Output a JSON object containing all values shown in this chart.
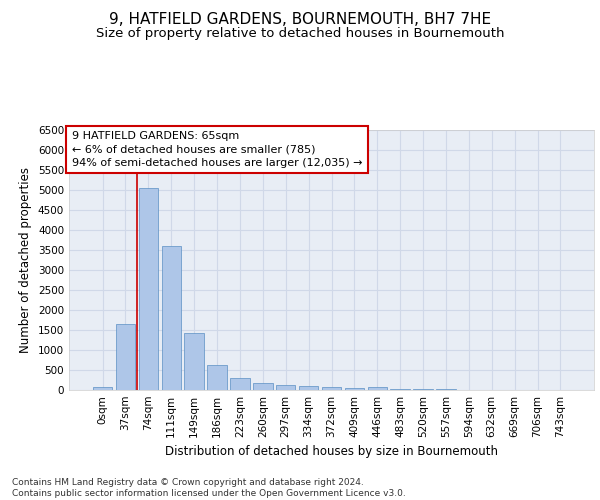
{
  "title": "9, HATFIELD GARDENS, BOURNEMOUTH, BH7 7HE",
  "subtitle": "Size of property relative to detached houses in Bournemouth",
  "xlabel": "Distribution of detached houses by size in Bournemouth",
  "ylabel": "Number of detached properties",
  "categories": [
    "0sqm",
    "37sqm",
    "74sqm",
    "111sqm",
    "149sqm",
    "186sqm",
    "223sqm",
    "260sqm",
    "297sqm",
    "334sqm",
    "372sqm",
    "409sqm",
    "446sqm",
    "483sqm",
    "520sqm",
    "557sqm",
    "594sqm",
    "632sqm",
    "669sqm",
    "706sqm",
    "743sqm"
  ],
  "values": [
    75,
    1650,
    5050,
    3600,
    1420,
    620,
    300,
    165,
    120,
    90,
    65,
    50,
    65,
    30,
    20,
    15,
    10,
    10,
    5,
    5,
    5
  ],
  "bar_color": "#aec6e8",
  "bar_edge_color": "#5a8fc4",
  "bar_edge_width": 0.5,
  "grid_color": "#d0d8e8",
  "background_color": "#e8edf5",
  "ylim": [
    0,
    6500
  ],
  "yticks": [
    0,
    500,
    1000,
    1500,
    2000,
    2500,
    3000,
    3500,
    4000,
    4500,
    5000,
    5500,
    6000,
    6500
  ],
  "annotation_text": "9 HATFIELD GARDENS: 65sqm\n← 6% of detached houses are smaller (785)\n94% of semi-detached houses are larger (12,035) →",
  "red_line_x": 1.5,
  "annotation_box_color": "#ffffff",
  "annotation_box_edge_color": "#cc0000",
  "title_fontsize": 11,
  "subtitle_fontsize": 9.5,
  "axis_label_fontsize": 8.5,
  "tick_fontsize": 7.5,
  "annotation_fontsize": 8,
  "footer_text": "Contains HM Land Registry data © Crown copyright and database right 2024.\nContains public sector information licensed under the Open Government Licence v3.0.",
  "footer_fontsize": 6.5
}
